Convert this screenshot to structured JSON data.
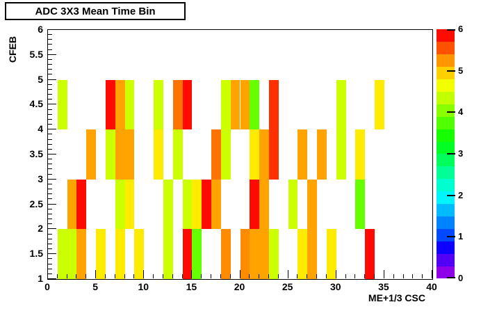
{
  "title": "ADC 3X3 Mean Time Bin",
  "axes": {
    "x": {
      "label": "ME+1/3 CSC",
      "min": 0,
      "max": 40,
      "major_step": 5,
      "minor_step": 1,
      "tick_labels": [
        "0",
        "5",
        "10",
        "15",
        "20",
        "25",
        "30",
        "35",
        "40"
      ]
    },
    "y": {
      "label": "CFEB",
      "min": 1,
      "max": 6,
      "major_step": 0.5,
      "minor_step": 0.1,
      "tick_labels": [
        "1",
        "1.5",
        "2",
        "2.5",
        "3",
        "3.5",
        "4",
        "4.5",
        "5",
        "5.5",
        "6"
      ]
    }
  },
  "colorbar": {
    "min": 0,
    "max": 6,
    "tick_labels": [
      "0",
      "1",
      "2",
      "3",
      "4",
      "5",
      "6"
    ],
    "band_colors_bottom_to_top": [
      "#8D00E8",
      "#5100F5",
      "#0D00FF",
      "#0049FF",
      "#0083FF",
      "#00BCFF",
      "#00F5FF",
      "#00FFCF",
      "#00FF96",
      "#00FF5C",
      "#00FF23",
      "#16FF00",
      "#50FF00",
      "#89FF00",
      "#C2FF00",
      "#F2FF00",
      "#FFD000",
      "#FF9600",
      "#FF5200",
      "#FF0C00"
    ]
  },
  "chart_data": {
    "type": "heatmap",
    "title": "ADC 3X3 Mean Time Bin",
    "xlabel": "ME+1/3 CSC",
    "ylabel": "CFEB",
    "x_range": [
      0,
      40
    ],
    "y_range": [
      1,
      6
    ],
    "z_range": [
      0,
      6
    ],
    "bin_size": {
      "x": 1,
      "y": 1
    },
    "note_empty_rows": "CFEB band 5-6 has no filled bins",
    "palette": {
      "red": {
        "hex": "#FF0A00",
        "value": 5.9
      },
      "ror": {
        "hex": "#FF3000",
        "value": 5.6
      },
      "or2": {
        "hex": "#FF7300",
        "value": 5.25
      },
      "or1": {
        "hex": "#FF8C00",
        "value": 5.1
      },
      "or": {
        "hex": "#FFA300",
        "value": 4.95
      },
      "y": {
        "hex": "#FFEB00",
        "value": 4.65
      },
      "yg": {
        "hex": "#CCFF00",
        "value": 4.35
      },
      "grn": {
        "hex": "#66FF00",
        "value": 4.05
      }
    },
    "cells": [
      {
        "x": 1,
        "y": 1,
        "c": "yg"
      },
      {
        "x": 2,
        "y": 1,
        "c": "yg"
      },
      {
        "x": 3,
        "y": 1,
        "c": "or"
      },
      {
        "x": 5,
        "y": 1,
        "c": "y"
      },
      {
        "x": 7,
        "y": 1,
        "c": "y"
      },
      {
        "x": 9,
        "y": 1,
        "c": "y"
      },
      {
        "x": 12,
        "y": 1,
        "c": "yg"
      },
      {
        "x": 14,
        "y": 1,
        "c": "red"
      },
      {
        "x": 15,
        "y": 1,
        "c": "grn"
      },
      {
        "x": 18,
        "y": 1,
        "c": "or1"
      },
      {
        "x": 20,
        "y": 1,
        "c": "or1"
      },
      {
        "x": 21,
        "y": 1,
        "c": "or"
      },
      {
        "x": 22,
        "y": 1,
        "c": "or"
      },
      {
        "x": 23,
        "y": 1,
        "c": "yg"
      },
      {
        "x": 26,
        "y": 1,
        "c": "y"
      },
      {
        "x": 27,
        "y": 1,
        "c": "or"
      },
      {
        "x": 29,
        "y": 1,
        "c": "y"
      },
      {
        "x": 33,
        "y": 1,
        "c": "red"
      },
      {
        "x": 2,
        "y": 2,
        "c": "or"
      },
      {
        "x": 3,
        "y": 2,
        "c": "red"
      },
      {
        "x": 7,
        "y": 2,
        "c": "yg"
      },
      {
        "x": 8,
        "y": 2,
        "c": "y"
      },
      {
        "x": 12,
        "y": 2,
        "c": "yg"
      },
      {
        "x": 14,
        "y": 2,
        "c": "yg"
      },
      {
        "x": 15,
        "y": 2,
        "c": "y"
      },
      {
        "x": 16,
        "y": 2,
        "c": "red"
      },
      {
        "x": 17,
        "y": 2,
        "c": "or"
      },
      {
        "x": 21,
        "y": 2,
        "c": "red"
      },
      {
        "x": 22,
        "y": 2,
        "c": "or"
      },
      {
        "x": 25,
        "y": 2,
        "c": "yg"
      },
      {
        "x": 27,
        "y": 2,
        "c": "or"
      },
      {
        "x": 32,
        "y": 2,
        "c": "grn"
      },
      {
        "x": 4,
        "y": 3,
        "c": "or"
      },
      {
        "x": 6,
        "y": 3,
        "c": "yg"
      },
      {
        "x": 7,
        "y": 3,
        "c": "or"
      },
      {
        "x": 8,
        "y": 3,
        "c": "or"
      },
      {
        "x": 11,
        "y": 3,
        "c": "y"
      },
      {
        "x": 13,
        "y": 3,
        "c": "yg"
      },
      {
        "x": 17,
        "y": 3,
        "c": "or2"
      },
      {
        "x": 18,
        "y": 3,
        "c": "yg"
      },
      {
        "x": 21,
        "y": 3,
        "c": "y"
      },
      {
        "x": 22,
        "y": 3,
        "c": "or"
      },
      {
        "x": 23,
        "y": 3,
        "c": "ror"
      },
      {
        "x": 26,
        "y": 3,
        "c": "or"
      },
      {
        "x": 28,
        "y": 3,
        "c": "or"
      },
      {
        "x": 30,
        "y": 3,
        "c": "yg"
      },
      {
        "x": 32,
        "y": 3,
        "c": "y"
      },
      {
        "x": 1,
        "y": 4,
        "c": "yg"
      },
      {
        "x": 6,
        "y": 4,
        "c": "red"
      },
      {
        "x": 7,
        "y": 4,
        "c": "or"
      },
      {
        "x": 8,
        "y": 4,
        "c": "yg"
      },
      {
        "x": 11,
        "y": 4,
        "c": "yg"
      },
      {
        "x": 13,
        "y": 4,
        "c": "or2"
      },
      {
        "x": 14,
        "y": 4,
        "c": "red"
      },
      {
        "x": 18,
        "y": 4,
        "c": "yg"
      },
      {
        "x": 19,
        "y": 4,
        "c": "or"
      },
      {
        "x": 20,
        "y": 4,
        "c": "or"
      },
      {
        "x": 21,
        "y": 4,
        "c": "grn"
      },
      {
        "x": 23,
        "y": 4,
        "c": "ror"
      },
      {
        "x": 30,
        "y": 4,
        "c": "yg"
      },
      {
        "x": 34,
        "y": 4,
        "c": "y"
      }
    ]
  }
}
